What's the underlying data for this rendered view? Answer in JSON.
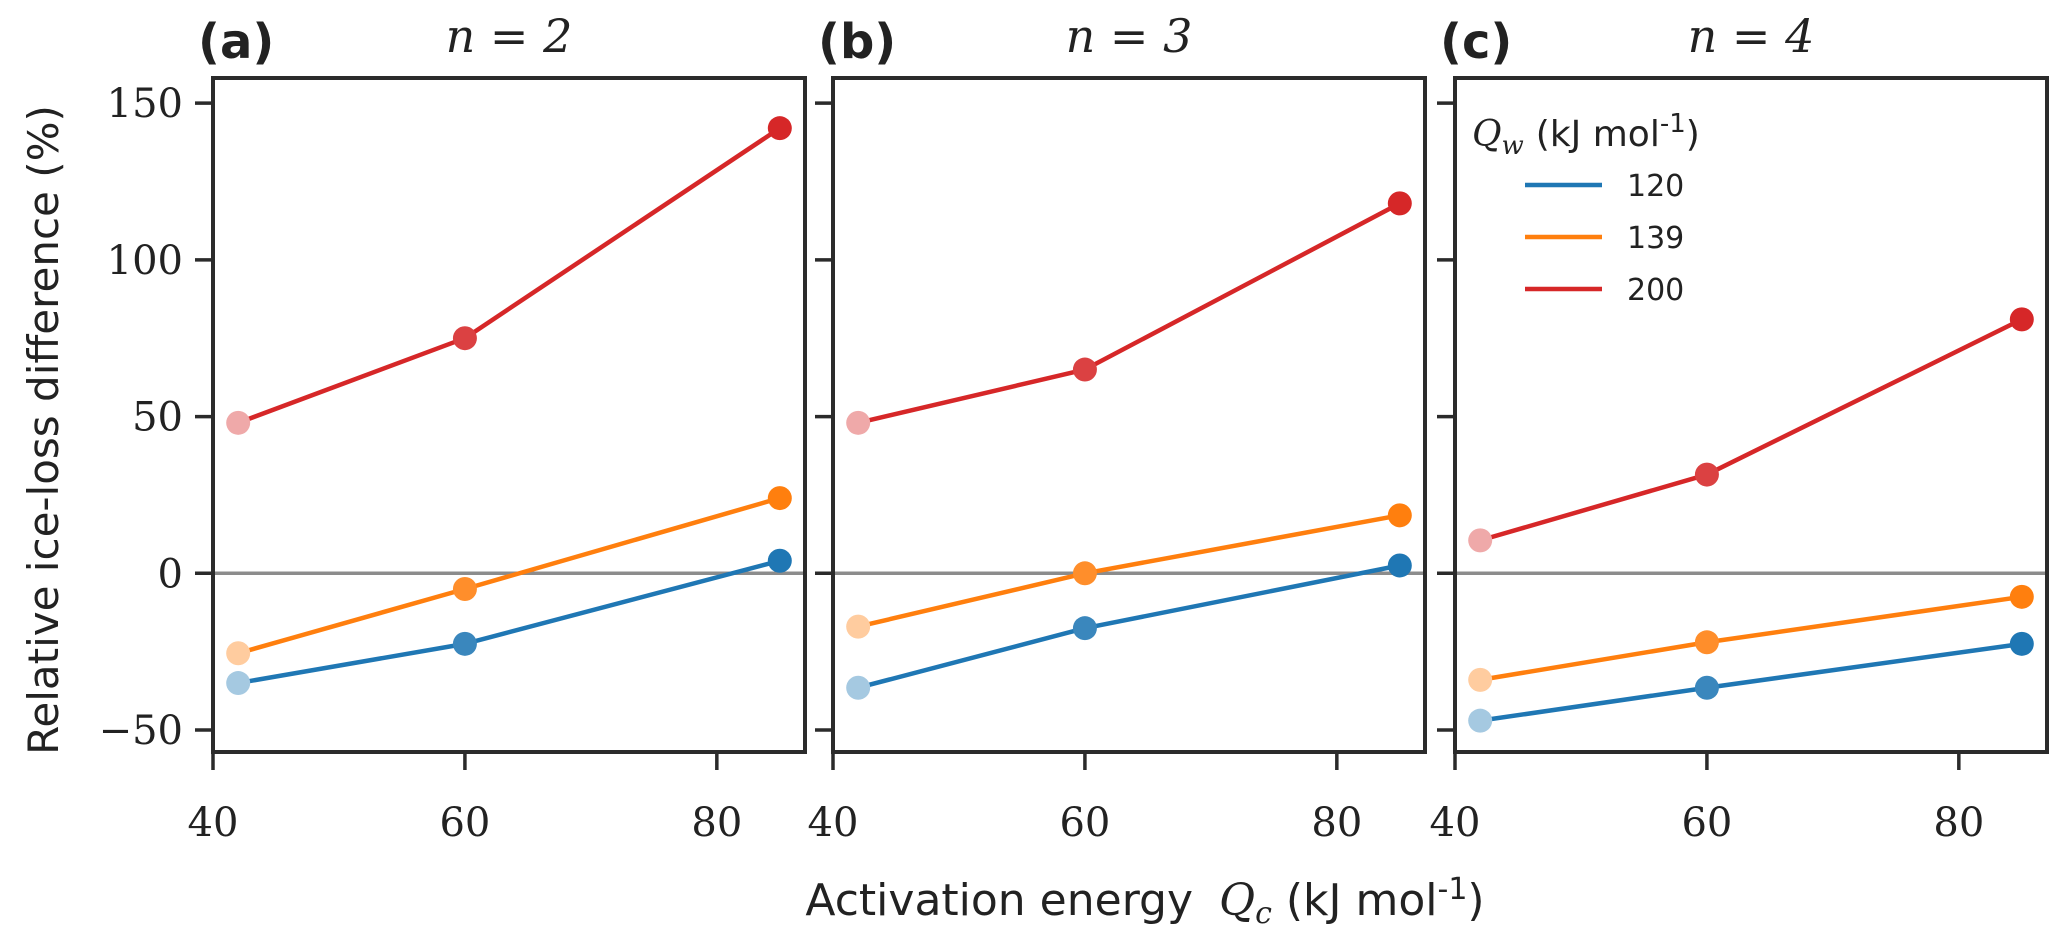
{
  "chart_data": [
    {
      "type": "line",
      "panel_label": "(a)",
      "title": "n = 2",
      "x": [
        42,
        60,
        85
      ],
      "series": [
        {
          "name": "120",
          "color": "#1f77b4",
          "values": [
            -35,
            -22.5,
            4
          ]
        },
        {
          "name": "139",
          "color": "#ff7f0e",
          "values": [
            -25.5,
            -5,
            24
          ]
        },
        {
          "name": "200",
          "color": "#d62728",
          "values": [
            48,
            75,
            142
          ]
        }
      ]
    },
    {
      "type": "line",
      "panel_label": "(b)",
      "title": "n = 3",
      "x": [
        42,
        60,
        85
      ],
      "series": [
        {
          "name": "120",
          "color": "#1f77b4",
          "values": [
            -36.5,
            -17.5,
            2.5
          ]
        },
        {
          "name": "139",
          "color": "#ff7f0e",
          "values": [
            -17,
            0,
            18.5
          ]
        },
        {
          "name": "200",
          "color": "#d62728",
          "values": [
            48,
            65,
            118
          ]
        }
      ]
    },
    {
      "type": "line",
      "panel_label": "(c)",
      "title": "n = 4",
      "x": [
        42,
        60,
        85
      ],
      "series": [
        {
          "name": "120",
          "color": "#1f77b4",
          "values": [
            -47,
            -36.5,
            -22.5
          ]
        },
        {
          "name": "139",
          "color": "#ff7f0e",
          "values": [
            -34,
            -22,
            -7.5
          ]
        },
        {
          "name": "200",
          "color": "#d62728",
          "values": [
            10.5,
            31.5,
            81
          ]
        }
      ]
    }
  ],
  "axes": {
    "xlabel": "Activation energy",
    "xlabel_symbol": "Q",
    "xlabel_sub": "c",
    "xlabel_unit": "(kJ mol",
    "xlabel_unit_exp": "-1",
    "xlabel_close": ")",
    "ylabel": "Relative ice-loss difference (%)",
    "xlim": [
      40,
      87
    ],
    "ylim": [
      -57,
      158
    ],
    "xticks": [
      40,
      60,
      80
    ],
    "xtick_labels": [
      "40",
      "60",
      "80"
    ],
    "yticks": [
      -50,
      0,
      50,
      100,
      150
    ],
    "ytick_labels": [
      "−50",
      "0",
      "50",
      "100",
      "150"
    ],
    "zero_line_color": "#8c8c8c"
  },
  "legend": {
    "title_symbol": "Q",
    "title_sub": "w",
    "title_unit": "(kJ mol",
    "title_unit_exp": "-1",
    "title_close": ")",
    "entries": [
      {
        "label": "120",
        "color": "#1f77b4"
      },
      {
        "label": "139",
        "color": "#ff7f0e"
      },
      {
        "label": "200",
        "color": "#d62728"
      }
    ],
    "placement": "upper-left of panel (c)"
  }
}
